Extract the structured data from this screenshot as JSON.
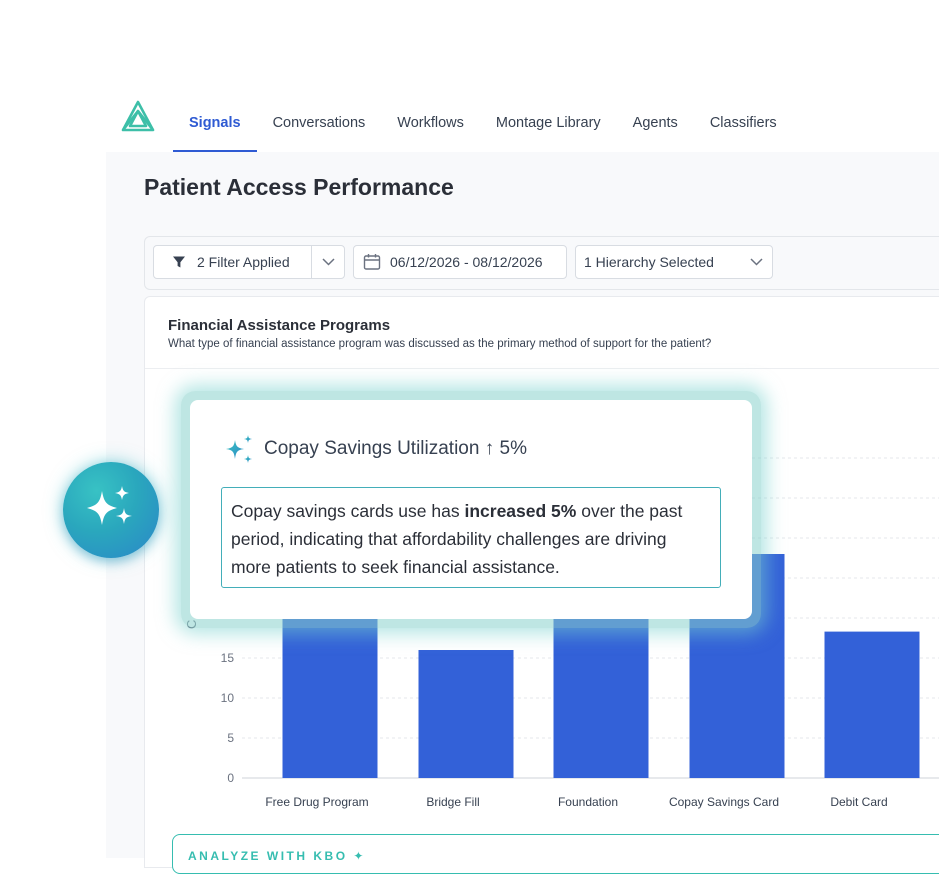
{
  "nav": {
    "logo_icon": "triangle-logo-icon",
    "tabs": [
      {
        "label": "Signals",
        "active": true
      },
      {
        "label": "Conversations"
      },
      {
        "label": "Workflows"
      },
      {
        "label": "Montage Library"
      },
      {
        "label": "Agents"
      },
      {
        "label": "Classifiers"
      }
    ]
  },
  "page": {
    "title": "Patient Access Performance"
  },
  "filters": {
    "filter_label": "2 Filter Applied",
    "date_range": "06/12/2026 - 08/12/2026",
    "hierarchy_label": "1 Hierarchy Selected"
  },
  "card": {
    "title": "Financial Assistance Programs",
    "subtitle": "What type of financial assistance program was discussed as the primary method of support for the patient?"
  },
  "chart_data": {
    "type": "bar",
    "categories": [
      "Free Drug Program",
      "Bridge Fill",
      "Foundation",
      "Copay Savings Card",
      "Debit Card"
    ],
    "values": [
      20,
      16,
      22,
      28,
      18.3
    ],
    "title": "",
    "xlabel": "",
    "ylabel": "",
    "yticks": [
      0,
      5,
      10,
      15
    ],
    "y_axis_visible_partial_label": "C",
    "bar_color": "#3361d8",
    "grid": true
  },
  "insight": {
    "icon": "sparkle-icon",
    "title": "Copay Savings Utilization ↑ 5%",
    "text_before": "Copay savings cards use has ",
    "text_bold": "increased 5%",
    "text_after": " over the past period, indicating that affordability challenges are driving more patients to seek financial assistance."
  },
  "kbo": {
    "label": "ANALYZE WITH KBO ✦"
  },
  "colors": {
    "accent": "#2f5bd3",
    "teal": "#36bdb0",
    "bar": "#3361d8"
  }
}
